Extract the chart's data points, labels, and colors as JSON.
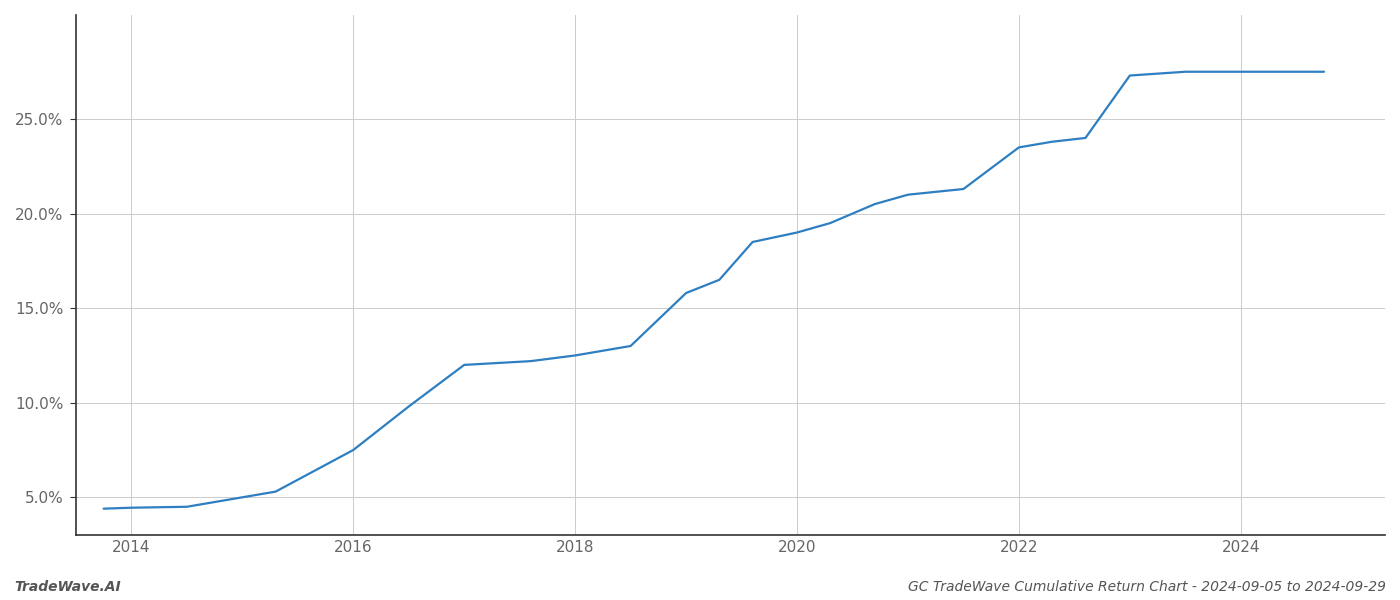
{
  "x_values": [
    2013.75,
    2014.0,
    2014.5,
    2015.0,
    2015.3,
    2016.0,
    2016.5,
    2017.0,
    2017.3,
    2017.6,
    2018.0,
    2018.5,
    2019.0,
    2019.3,
    2019.6,
    2020.0,
    2020.3,
    2020.7,
    2021.0,
    2021.5,
    2022.0,
    2022.3,
    2022.6,
    2023.0,
    2023.5,
    2023.75,
    2024.0,
    2024.75
  ],
  "y_values": [
    4.4,
    4.45,
    4.5,
    5.0,
    5.3,
    7.5,
    9.8,
    12.0,
    12.1,
    12.2,
    12.5,
    13.0,
    15.8,
    16.5,
    18.5,
    19.0,
    19.5,
    20.5,
    21.0,
    21.3,
    23.5,
    23.8,
    24.0,
    27.3,
    27.5,
    27.5,
    27.5,
    27.5
  ],
  "line_color": "#2e7fc1",
  "line_width": 1.6,
  "xlim": [
    2013.5,
    2025.3
  ],
  "ylim": [
    3.0,
    30.5
  ],
  "xticks": [
    2014,
    2016,
    2018,
    2020,
    2022,
    2024
  ],
  "yticks": [
    5.0,
    10.0,
    15.0,
    20.0,
    25.0
  ],
  "ytick_labels": [
    "5.0%",
    "10.0%",
    "15.0%",
    "20.0%",
    "25.0%"
  ],
  "grid_color": "#cccccc",
  "grid_linewidth": 0.7,
  "background_color": "#ffffff",
  "left_spine_color": "#333333",
  "bottom_spine_color": "#333333",
  "tick_color": "#666666",
  "footer_left": "TradeWave.AI",
  "footer_right": "GC TradeWave Cumulative Return Chart - 2024-09-05 to 2024-09-29",
  "footer_fontsize": 10,
  "tick_fontsize": 11,
  "figure_width": 14.0,
  "figure_height": 6.0
}
